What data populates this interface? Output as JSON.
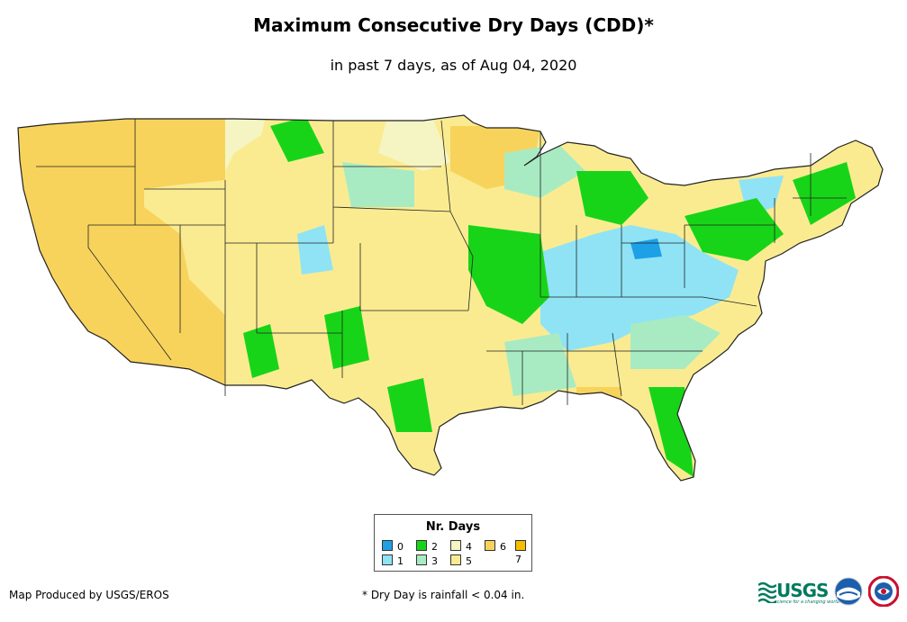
{
  "header": {
    "title": "Maximum Consecutive Dry Days (CDD)*",
    "subtitle": "in past 7 days, as of Aug 04, 2020"
  },
  "legend": {
    "title": "Nr. Days",
    "items": [
      {
        "label": "0",
        "color": "#1ea0e6"
      },
      {
        "label": "1",
        "color": "#8fe3f5"
      },
      {
        "label": "2",
        "color": "#18d418"
      },
      {
        "label": "3",
        "color": "#a8ebc3"
      },
      {
        "label": "4",
        "color": "#f5f5c4"
      },
      {
        "label": "5",
        "color": "#faeb91"
      },
      {
        "label": "6",
        "color": "#f7d35c"
      },
      {
        "label": "7",
        "color": "#f7be00"
      }
    ]
  },
  "footer": {
    "credit": "Map Produced by USGS/EROS",
    "note": "* Dry Day is rainfall < 0.04 in."
  },
  "logos": {
    "usgs_text": "USGS",
    "usgs_tagline": "science for a changing world",
    "icons": [
      "usgs-logo-icon",
      "noaa-logo-icon",
      "nws-logo-icon"
    ]
  },
  "map": {
    "base_color": "#faeb91",
    "west_color": "#f7d35c",
    "border_color": "#222222"
  }
}
